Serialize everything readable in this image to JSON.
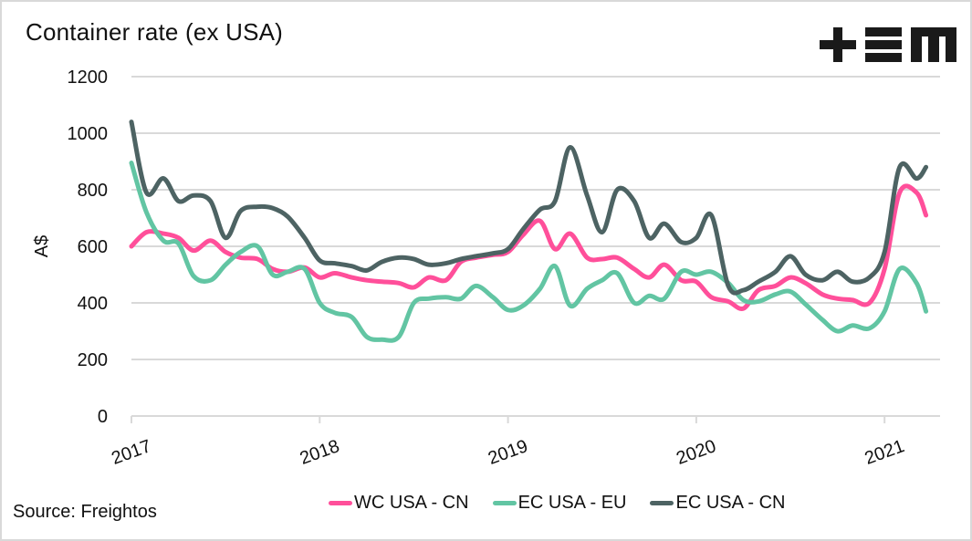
{
  "title": "Container rate (ex USA)",
  "source": "Source: Freightos",
  "logo": {
    "name": "+EM logo",
    "text": "+EM"
  },
  "chart_data": {
    "type": "line",
    "title": "Container rate (ex USA)",
    "xlabel": "",
    "ylabel": "A$",
    "ylim": [
      0,
      1200
    ],
    "yticks": [
      0,
      200,
      400,
      600,
      800,
      1000,
      1200
    ],
    "xlim": [
      2017,
      2021.3
    ],
    "xticks": [
      2017,
      2018,
      2019,
      2020,
      2021
    ],
    "xtick_labels": [
      "2017",
      "2018",
      "2019",
      "2020",
      "2021"
    ],
    "grid": "horizontal",
    "legend": "bottom",
    "x": [
      2017.0,
      2017.08,
      2017.17,
      2017.25,
      2017.33,
      2017.42,
      2017.5,
      2017.58,
      2017.67,
      2017.75,
      2017.83,
      2017.92,
      2018.0,
      2018.08,
      2018.17,
      2018.25,
      2018.33,
      2018.42,
      2018.5,
      2018.58,
      2018.67,
      2018.75,
      2018.83,
      2018.92,
      2019.0,
      2019.08,
      2019.17,
      2019.25,
      2019.33,
      2019.42,
      2019.5,
      2019.58,
      2019.67,
      2019.75,
      2019.83,
      2019.92,
      2020.0,
      2020.08,
      2020.17,
      2020.25,
      2020.33,
      2020.42,
      2020.5,
      2020.58,
      2020.67,
      2020.75,
      2020.83,
      2020.92,
      2021.0,
      2021.08,
      2021.17,
      2021.22
    ],
    "series": [
      {
        "name": "WC USA - CN",
        "color": "#ff4f9a",
        "values": [
          600,
          650,
          645,
          630,
          585,
          620,
          580,
          560,
          555,
          520,
          510,
          525,
          490,
          505,
          490,
          480,
          475,
          470,
          455,
          490,
          480,
          545,
          560,
          570,
          580,
          640,
          690,
          590,
          645,
          560,
          555,
          560,
          520,
          490,
          535,
          480,
          475,
          420,
          405,
          380,
          445,
          460,
          490,
          470,
          430,
          415,
          410,
          400,
          520,
          790,
          790,
          710
        ]
      },
      {
        "name": "EC USA - EU",
        "color": "#62c5a3",
        "values": [
          895,
          720,
          620,
          610,
          495,
          480,
          535,
          580,
          600,
          500,
          510,
          520,
          400,
          365,
          350,
          280,
          270,
          280,
          400,
          415,
          420,
          415,
          460,
          420,
          375,
          390,
          450,
          530,
          390,
          450,
          480,
          505,
          400,
          425,
          415,
          510,
          500,
          510,
          470,
          410,
          405,
          430,
          440,
          395,
          340,
          300,
          320,
          310,
          370,
          520,
          470,
          370
        ]
      },
      {
        "name": "EC USA - CN",
        "color": "#4d6363",
        "values": [
          1040,
          790,
          840,
          760,
          780,
          760,
          630,
          725,
          740,
          735,
          705,
          630,
          550,
          540,
          530,
          515,
          545,
          560,
          555,
          535,
          540,
          555,
          565,
          575,
          590,
          660,
          730,
          760,
          950,
          780,
          650,
          800,
          760,
          630,
          680,
          615,
          630,
          710,
          460,
          445,
          475,
          510,
          565,
          500,
          480,
          510,
          475,
          490,
          580,
          880,
          840,
          880
        ]
      }
    ]
  }
}
